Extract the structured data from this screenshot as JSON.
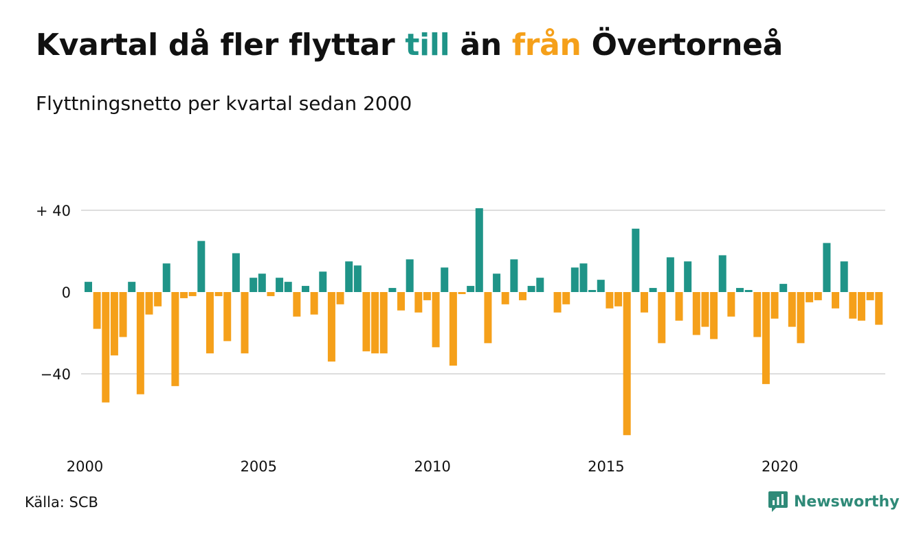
{
  "title": {
    "part1": "Kvartal då fler flyttar ",
    "till": "till",
    "part2": " än ",
    "fran": "från",
    "part3": " Övertorneå"
  },
  "subtitle": "Flyttningsnetto per kvartal sedan 2000",
  "source": "Källa: SCB",
  "brand": {
    "name": "Newsworthy",
    "icon": "newsworthy-logo-icon"
  },
  "colors": {
    "positive": "#1f9488",
    "negative": "#f5a01a",
    "grid": "#dddddd",
    "brand": "#2f8a78"
  },
  "chart_data": {
    "type": "bar",
    "title": "Kvartal då fler flyttar till än från Övertorneå",
    "subtitle": "Flyttningsnetto per kvartal sedan 2000",
    "xlabel": "",
    "ylabel": "",
    "x_ticks": [
      "2000",
      "2005",
      "2010",
      "2015",
      "2020"
    ],
    "x_tick_years": [
      2000,
      2005,
      2010,
      2015,
      2020
    ],
    "y_ticks": [
      {
        "value": 40,
        "label": "+ 40"
      },
      {
        "value": 0,
        "label": "0"
      },
      {
        "value": -40,
        "label": "−40"
      }
    ],
    "ylim": [
      -70,
      42
    ],
    "x_start": "2000 Q1",
    "grid": true,
    "legend": "none",
    "values": [
      5,
      -18,
      -54,
      -31,
      -22,
      5,
      -50,
      -11,
      -7,
      14,
      -46,
      -3,
      -2,
      25,
      -30,
      -2,
      -24,
      19,
      -30,
      7,
      9,
      -2,
      7,
      5,
      -12,
      3,
      -11,
      10,
      -34,
      -6,
      15,
      13,
      -29,
      -30,
      -30,
      2,
      -9,
      16,
      -10,
      -4,
      -27,
      12,
      -36,
      -1,
      3,
      41,
      -25,
      9,
      -6,
      16,
      -4,
      3,
      7,
      0,
      -10,
      -6,
      12,
      14,
      1,
      6,
      -8,
      -7,
      -70,
      31,
      -10,
      2,
      -25,
      17,
      -14,
      15,
      -21,
      -17,
      -23,
      18,
      -12,
      2,
      1,
      -22,
      -45,
      -13,
      4,
      -17,
      -25,
      -5,
      -4,
      24,
      -8,
      15,
      -13,
      -14,
      -4,
      -16
    ]
  }
}
